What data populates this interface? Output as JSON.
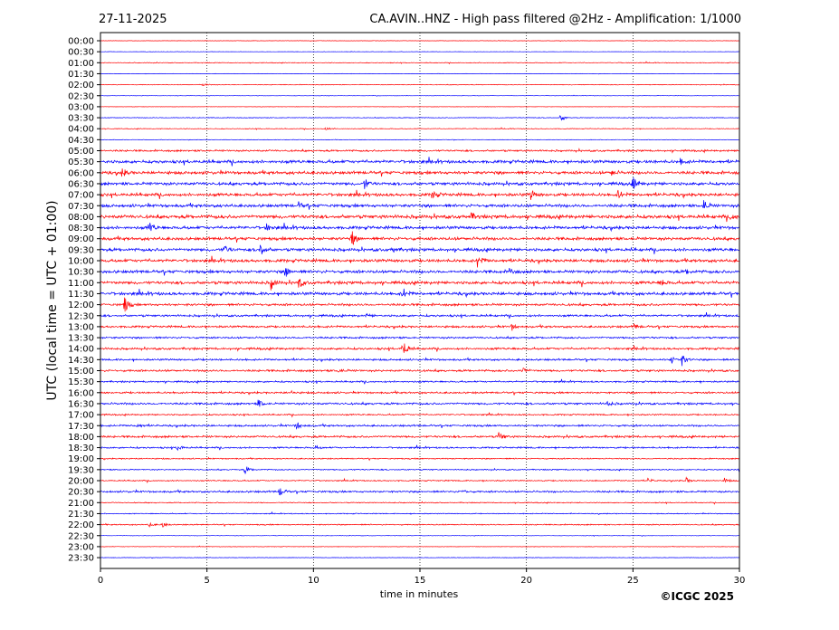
{
  "header": {
    "date": "27-11-2025",
    "title": "CA.AVIN..HNZ - High pass filtered @2Hz - Amplification: 1/1000"
  },
  "footer": {
    "copyright": "©ICGC 2025"
  },
  "chart_data": {
    "type": "line",
    "title": "CA.AVIN..HNZ - High pass filtered @2Hz - Amplification: 1/1000",
    "xlabel": "time in minutes",
    "ylabel": "UTC (local time = UTC + 01:00)",
    "xlim": [
      0,
      30
    ],
    "x_ticks": [
      0,
      5,
      10,
      15,
      20,
      25,
      30
    ],
    "grid": "vertical dotted lines at 5, 10, 15, 20, 25",
    "trace_colors": [
      "#ff0000",
      "#0000ff"
    ],
    "rows": [
      {
        "label": "00:00",
        "noise": 0.15,
        "events": []
      },
      {
        "label": "00:30",
        "noise": 0.15,
        "events": []
      },
      {
        "label": "01:00",
        "noise": 0.3,
        "events": []
      },
      {
        "label": "01:30",
        "noise": 0.15,
        "events": []
      },
      {
        "label": "02:00",
        "noise": 0.3,
        "events": [
          {
            "t": 4.8,
            "a": 2
          }
        ]
      },
      {
        "label": "02:30",
        "noise": 0.15,
        "events": []
      },
      {
        "label": "03:00",
        "noise": 0.15,
        "events": []
      },
      {
        "label": "03:30",
        "noise": 0.3,
        "events": [
          {
            "t": 21.6,
            "a": 5
          }
        ]
      },
      {
        "label": "04:00",
        "noise": 0.3,
        "events": [
          {
            "t": 10.6,
            "a": 2
          }
        ]
      },
      {
        "label": "04:30",
        "noise": 0.2,
        "events": []
      },
      {
        "label": "05:00",
        "noise": 0.8,
        "events": []
      },
      {
        "label": "05:30",
        "noise": 1.3,
        "events": [
          {
            "t": 27.2,
            "a": 3
          }
        ]
      },
      {
        "label": "06:00",
        "noise": 1.3,
        "events": [
          {
            "t": 1.0,
            "a": 5
          },
          {
            "t": 24.0,
            "a": 3
          }
        ]
      },
      {
        "label": "06:30",
        "noise": 1.3,
        "events": [
          {
            "t": 12.4,
            "a": 6
          },
          {
            "t": 25.0,
            "a": 7
          }
        ]
      },
      {
        "label": "07:00",
        "noise": 1.3,
        "events": [
          {
            "t": 15.6,
            "a": 5
          },
          {
            "t": 20.2,
            "a": 6
          },
          {
            "t": 24.3,
            "a": 5
          }
        ]
      },
      {
        "label": "07:30",
        "noise": 1.3,
        "events": [
          {
            "t": 9.3,
            "a": 3
          },
          {
            "t": 28.3,
            "a": 8
          }
        ]
      },
      {
        "label": "08:00",
        "noise": 1.5,
        "events": [
          {
            "t": 17.4,
            "a": 4
          },
          {
            "t": 29.6,
            "a": 4
          }
        ]
      },
      {
        "label": "08:30",
        "noise": 1.3,
        "events": [
          {
            "t": 2.3,
            "a": 6
          },
          {
            "t": 7.8,
            "a": 4
          }
        ]
      },
      {
        "label": "09:00",
        "noise": 1.3,
        "events": [
          {
            "t": 11.8,
            "a": 9
          }
        ]
      },
      {
        "label": "09:30",
        "noise": 1.3,
        "events": [
          {
            "t": 5.8,
            "a": 5
          },
          {
            "t": 7.5,
            "a": 7
          },
          {
            "t": 13.7,
            "a": 3
          }
        ]
      },
      {
        "label": "10:00",
        "noise": 1.3,
        "events": [
          {
            "t": 17.7,
            "a": 9
          }
        ]
      },
      {
        "label": "10:30",
        "noise": 1.3,
        "events": [
          {
            "t": 8.7,
            "a": 6
          },
          {
            "t": 19.2,
            "a": 4
          },
          {
            "t": 27.5,
            "a": 3
          }
        ]
      },
      {
        "label": "11:00",
        "noise": 1.3,
        "events": [
          {
            "t": 8.0,
            "a": 7
          },
          {
            "t": 9.3,
            "a": 6
          },
          {
            "t": 26.3,
            "a": 5
          }
        ]
      },
      {
        "label": "11:30",
        "noise": 1.3,
        "events": [
          {
            "t": 14.2,
            "a": 6
          }
        ]
      },
      {
        "label": "12:00",
        "noise": 1.0,
        "events": [
          {
            "t": 1.1,
            "a": 12
          }
        ]
      },
      {
        "label": "12:30",
        "noise": 0.9,
        "events": [
          {
            "t": 12.5,
            "a": 2
          }
        ]
      },
      {
        "label": "13:00",
        "noise": 0.9,
        "events": [
          {
            "t": 19.3,
            "a": 4
          },
          {
            "t": 25.0,
            "a": 4
          }
        ]
      },
      {
        "label": "13:30",
        "noise": 0.8,
        "events": []
      },
      {
        "label": "14:00",
        "noise": 0.9,
        "events": [
          {
            "t": 14.2,
            "a": 12
          }
        ]
      },
      {
        "label": "14:30",
        "noise": 0.8,
        "events": [
          {
            "t": 26.8,
            "a": 5
          },
          {
            "t": 27.3,
            "a": 6
          }
        ]
      },
      {
        "label": "15:00",
        "noise": 0.9,
        "events": [
          {
            "t": 19.8,
            "a": 4
          },
          {
            "t": 11.2,
            "a": 3
          }
        ]
      },
      {
        "label": "15:30",
        "noise": 0.7,
        "events": []
      },
      {
        "label": "16:00",
        "noise": 0.8,
        "events": [
          {
            "t": 8.9,
            "a": 2
          }
        ]
      },
      {
        "label": "16:30",
        "noise": 0.9,
        "events": [
          {
            "t": 7.4,
            "a": 5
          },
          {
            "t": 23.8,
            "a": 3
          }
        ]
      },
      {
        "label": "17:00",
        "noise": 0.6,
        "events": []
      },
      {
        "label": "17:30",
        "noise": 0.8,
        "events": [
          {
            "t": 1.7,
            "a": 3
          },
          {
            "t": 9.2,
            "a": 5
          }
        ]
      },
      {
        "label": "18:00",
        "noise": 0.9,
        "events": [
          {
            "t": 18.7,
            "a": 6
          }
        ]
      },
      {
        "label": "18:30",
        "noise": 0.7,
        "events": [
          {
            "t": 3.6,
            "a": 4
          },
          {
            "t": 10.1,
            "a": 2
          }
        ]
      },
      {
        "label": "19:00",
        "noise": 0.5,
        "events": []
      },
      {
        "label": "19:30",
        "noise": 0.5,
        "events": [
          {
            "t": 6.8,
            "a": 5
          }
        ]
      },
      {
        "label": "20:00",
        "noise": 0.5,
        "events": [
          {
            "t": 25.7,
            "a": 3
          },
          {
            "t": 27.5,
            "a": 3
          },
          {
            "t": 29.3,
            "a": 3
          }
        ]
      },
      {
        "label": "20:30",
        "noise": 0.8,
        "events": [
          {
            "t": 8.4,
            "a": 6
          },
          {
            "t": 17.0,
            "a": 2
          }
        ]
      },
      {
        "label": "21:00",
        "noise": 0.4,
        "events": []
      },
      {
        "label": "21:30",
        "noise": 0.4,
        "events": []
      },
      {
        "label": "22:00",
        "noise": 0.5,
        "events": [
          {
            "t": 2.3,
            "a": 2
          },
          {
            "t": 2.9,
            "a": 3
          }
        ]
      },
      {
        "label": "22:30",
        "noise": 0.2,
        "events": []
      },
      {
        "label": "23:00",
        "noise": 0.2,
        "events": []
      },
      {
        "label": "23:30",
        "noise": 0.2,
        "events": []
      }
    ]
  }
}
